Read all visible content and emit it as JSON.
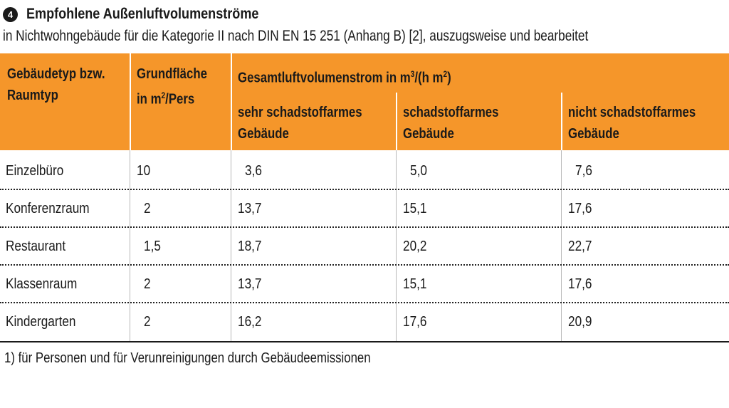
{
  "figure": {
    "number": "4",
    "title": "Empfohlene Außenluftvolumenströme",
    "subtitle": "in Nichtwohngebäude für die Kategorie II nach DIN EN 15 251 (Anhang B) [2], auszugsweise und bearbeitet"
  },
  "table": {
    "header": {
      "col1_line1": "Gebäudetyp bzw.",
      "col1_line2": "Raumtyp",
      "col2_line1": "Grundfläche",
      "col2_line2_prefix": "in m",
      "col2_line2_sup": "2",
      "col2_line2_suffix": "/Pers",
      "group_prefix": "Gesamtluftvolumenstrom in m",
      "group_sup": "3",
      "group_mid": "/(h m",
      "group_sup2": "2",
      "group_suffix": ")",
      "sub1_line1": "sehr schadstoffarmes",
      "sub1_line2": "Gebäude",
      "sub2_line1": "schadstoffarmes",
      "sub2_line2": "Gebäude",
      "sub3_line1": "nicht schadstoffarmes",
      "sub3_line2": "Gebäude"
    },
    "rows": [
      {
        "typ": "Einzelbüro",
        "flaeche": "10",
        "sehr": "3,6",
        "arm": "5,0",
        "nicht": "7,6"
      },
      {
        "typ": "Konferenzraum",
        "flaeche": "2",
        "sehr": "13,7",
        "arm": "15,1",
        "nicht": "17,6"
      },
      {
        "typ": "Restaurant",
        "flaeche": "1,5",
        "sehr": "18,7",
        "arm": "20,2",
        "nicht": "22,7"
      },
      {
        "typ": "Klassenraum",
        "flaeche": "2",
        "sehr": "13,7",
        "arm": "15,1",
        "nicht": "17,6"
      },
      {
        "typ": "Kindergarten",
        "flaeche": "2",
        "sehr": "16,2",
        "arm": "17,6",
        "nicht": "20,9"
      }
    ]
  },
  "footnote": "1) für Personen und für Verunreinigungen durch Gebäudeemissionen",
  "colors": {
    "header_bg": "#f5962a",
    "text": "#1a1a1a"
  }
}
